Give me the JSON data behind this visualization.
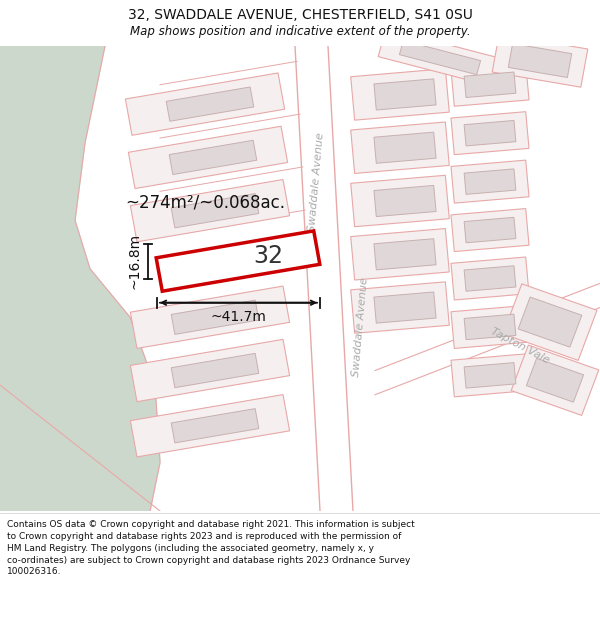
{
  "title": "32, SWADDALE AVENUE, CHESTERFIELD, S41 0SU",
  "subtitle": "Map shows position and indicative extent of the property.",
  "footer": "Contains OS data © Crown copyright and database right 2021. This information is subject to Crown copyright and database rights 2023 and is reproduced with the permission of HM Land Registry. The polygons (including the associated geometry, namely x, y co-ordinates) are subject to Crown copyright and database rights 2023 Ordnance Survey 100026316.",
  "map_bg": "#f9f3f3",
  "road_bg": "#ffffff",
  "plot_fill": "#f5efef",
  "plot_edge": "#e8a8a8",
  "bldg_fill": "#e0d8d8",
  "bldg_edge": "#c8b0b0",
  "highlight_fill": "#ffffff",
  "highlight_edge": "#cc0000",
  "green_area": "#cdd8cc",
  "measure_color": "#111111",
  "street_color": "#aaaaaa",
  "area_text": "~274m²/~0.068ac.",
  "label_32": "32",
  "dim_width": "~41.7m",
  "dim_height": "~16.8m",
  "street1": "Swaddale Avenue",
  "street2": "Swaddale Avenue",
  "street3": "Tapton Vale",
  "title_fontsize": 10,
  "subtitle_fontsize": 8.5
}
